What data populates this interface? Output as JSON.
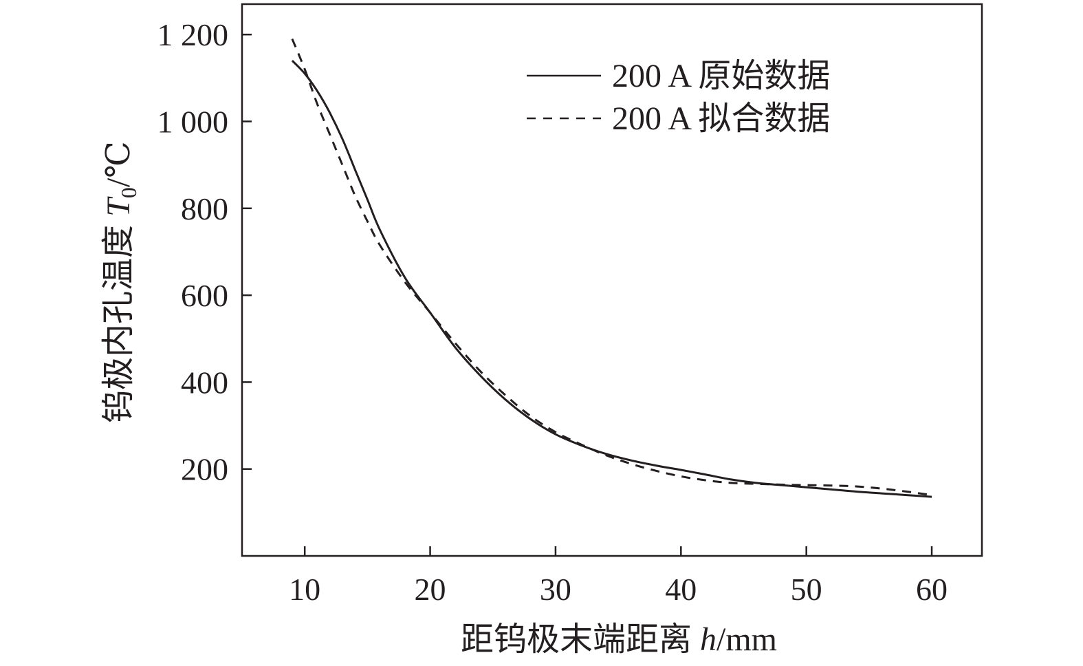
{
  "chart_data": {
    "type": "line",
    "xlabel": "距钨极末端距离 h/mm",
    "ylabel": "钨极内孔温度 T0/℃",
    "xlim": [
      5,
      64
    ],
    "ylim": [
      0,
      1270
    ],
    "xticks": [
      10,
      20,
      30,
      40,
      50,
      60
    ],
    "xtick_labels": [
      "10",
      "20",
      "30",
      "40",
      "50",
      "60"
    ],
    "yticks": [
      200,
      400,
      600,
      800,
      1000,
      1200
    ],
    "ytick_labels": [
      "200",
      "400",
      "600",
      "800",
      "1 000",
      "1 200"
    ],
    "grid": false,
    "legend_position": "top-right",
    "series": [
      {
        "name": "200 A 原始数据",
        "style": "solid",
        "color": "#231f20",
        "x": [
          9,
          10,
          11,
          12,
          13,
          14,
          15,
          16,
          18,
          20,
          22,
          24,
          26,
          28,
          30,
          32,
          34,
          36,
          38,
          40,
          42,
          44,
          46,
          48,
          50,
          52,
          54,
          56,
          58,
          60
        ],
        "y": [
          1140,
          1110,
          1070,
          1020,
          960,
          890,
          820,
          750,
          640,
          560,
          480,
          415,
          360,
          315,
          280,
          255,
          235,
          220,
          208,
          198,
          187,
          176,
          168,
          163,
          158,
          153,
          148,
          144,
          140,
          136
        ]
      },
      {
        "name": "200 A 拟合数据",
        "style": "dashed",
        "color": "#231f20",
        "x": [
          9,
          10,
          11,
          12,
          13,
          14,
          15,
          16,
          18,
          20,
          22,
          24,
          26,
          28,
          30,
          32,
          34,
          36,
          38,
          40,
          42,
          44,
          46,
          48,
          50,
          52,
          54,
          56,
          58,
          60
        ],
        "y": [
          1190,
          1120,
          1040,
          970,
          900,
          830,
          770,
          715,
          630,
          560,
          490,
          425,
          370,
          322,
          285,
          257,
          232,
          212,
          196,
          183,
          174,
          168,
          166,
          164,
          163,
          162,
          160,
          155,
          148,
          140
        ]
      }
    ]
  }
}
